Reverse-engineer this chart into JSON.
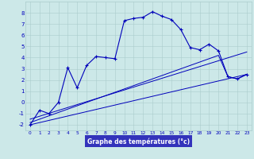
{
  "xlabel": "Graphe des températures (°c)",
  "background_color": "#cce8e8",
  "line_color": "#0000bb",
  "grid_color": "#aacccc",
  "axis_bg": "#cce8e8",
  "bottom_bar_color": "#3333bb",
  "xlim": [
    -0.5,
    23.5
  ],
  "ylim": [
    -2.5,
    9.0
  ],
  "xticks": [
    0,
    1,
    2,
    3,
    4,
    5,
    6,
    7,
    8,
    9,
    10,
    11,
    12,
    13,
    14,
    15,
    16,
    17,
    18,
    19,
    20,
    21,
    22,
    23
  ],
  "yticks": [
    -2,
    -1,
    0,
    1,
    2,
    3,
    4,
    5,
    6,
    7,
    8
  ],
  "main_x": [
    0,
    1,
    2,
    3,
    4,
    5,
    6,
    7,
    8,
    9,
    10,
    11,
    12,
    13,
    14,
    15,
    16,
    17,
    18,
    19,
    20,
    21,
    22,
    23
  ],
  "main_y": [
    -2.0,
    -0.7,
    -1.0,
    0.0,
    3.1,
    1.3,
    3.3,
    4.1,
    4.0,
    3.9,
    7.3,
    7.5,
    7.6,
    8.1,
    7.7,
    7.4,
    6.5,
    4.9,
    4.7,
    5.2,
    4.6,
    2.3,
    2.1,
    2.5
  ],
  "line2_x": [
    0,
    23
  ],
  "line2_y": [
    -2.0,
    2.5
  ],
  "line3_x": [
    0,
    23
  ],
  "line3_y": [
    -1.5,
    4.5
  ],
  "line4_x": [
    0,
    20,
    21,
    22,
    23
  ],
  "line4_y": [
    -1.8,
    4.2,
    2.3,
    2.1,
    2.5
  ]
}
